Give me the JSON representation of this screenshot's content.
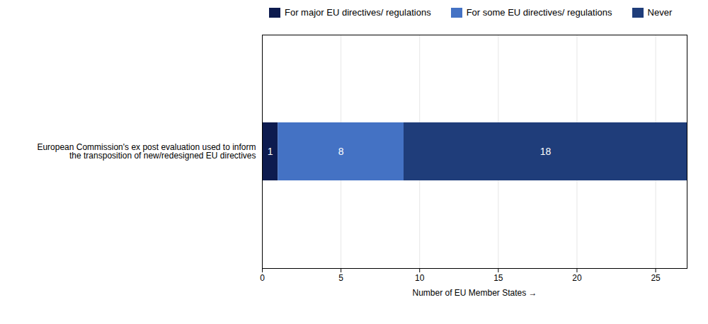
{
  "chart_data": {
    "type": "bar",
    "orientation": "horizontal",
    "stacked": true,
    "categories": [
      "European Commission's ex post evaluation used to inform\nthe transposition of new/redesigned EU directives"
    ],
    "series": [
      {
        "name": "For major EU directives/ regulations",
        "color": "#0d1b4f",
        "values": [
          1
        ]
      },
      {
        "name": "For some EU directives/ regulations",
        "color": "#4472c4",
        "values": [
          8
        ]
      },
      {
        "name": "Never",
        "color": "#1f3d7a",
        "values": [
          18
        ]
      }
    ],
    "xlim": [
      0,
      27
    ],
    "xticks": [
      0,
      5,
      10,
      15,
      20,
      25
    ],
    "xlabel": "Number of EU Member States",
    "grid": true,
    "data_labels": true,
    "legend": "top"
  }
}
